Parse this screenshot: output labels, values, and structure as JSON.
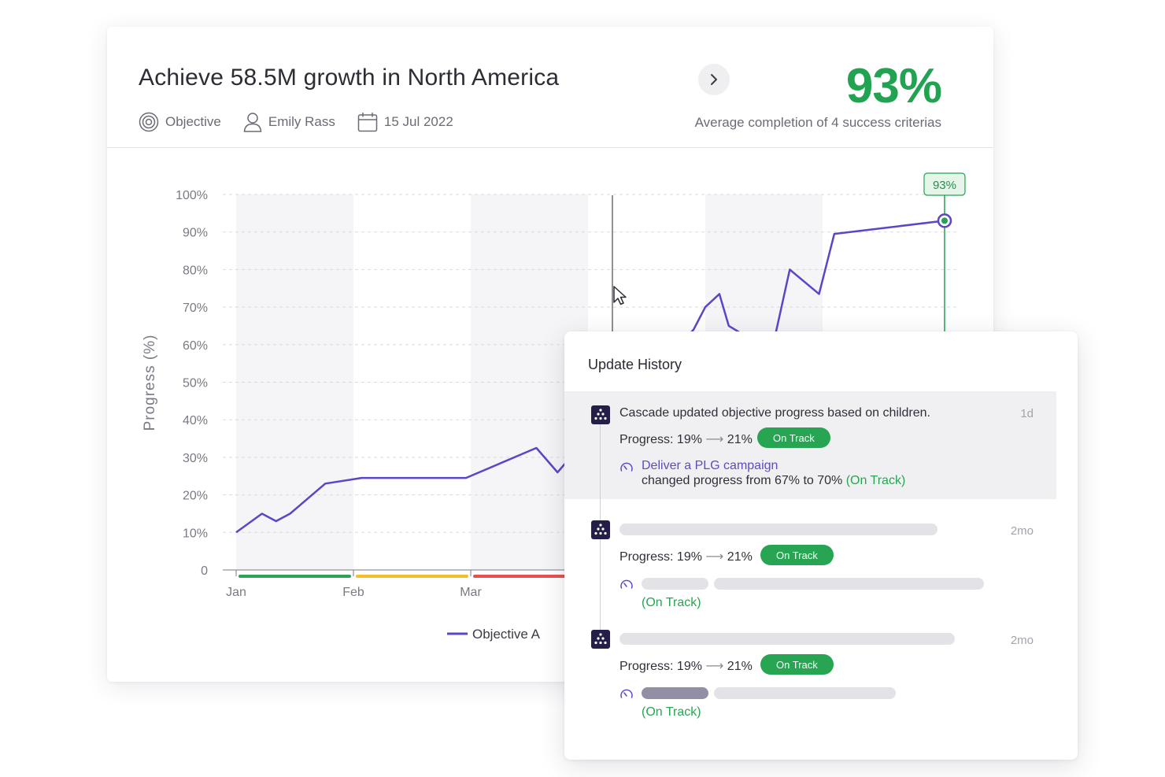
{
  "objective": {
    "title": "Achieve 58.5M growth in North America",
    "type_label": "Objective",
    "owner": "Emily Rass",
    "date": "15 Jul 2022",
    "completion_value": "93%",
    "completion_caption": "Average completion of 4 success criterias"
  },
  "chart_data": {
    "type": "line",
    "title": "",
    "ylabel": "Progress (%)",
    "xlabel": "",
    "ylim": [
      0,
      100
    ],
    "yticks": [
      "0",
      "10%",
      "20%",
      "30%",
      "40%",
      "50%",
      "60%",
      "70%",
      "80%",
      "90%",
      "100%"
    ],
    "xticks": [
      "Jan",
      "Feb",
      "Mar"
    ],
    "series": [
      {
        "name": "Objective A",
        "color": "#5a46c6",
        "points": [
          {
            "x": 0.0,
            "y": 10
          },
          {
            "x": 0.22,
            "y": 15
          },
          {
            "x": 0.34,
            "y": 13
          },
          {
            "x": 0.46,
            "y": 15
          },
          {
            "x": 0.76,
            "y": 23
          },
          {
            "x": 1.07,
            "y": 24.5
          },
          {
            "x": 1.96,
            "y": 24.5
          },
          {
            "x": 2.56,
            "y": 32.5
          },
          {
            "x": 2.74,
            "y": 26
          },
          {
            "x": 2.85,
            "y": 30
          },
          {
            "x": 3.9,
            "y": 64
          },
          {
            "x": 4.0,
            "y": 70
          },
          {
            "x": 4.12,
            "y": 73.5
          },
          {
            "x": 4.2,
            "y": 65
          },
          {
            "x": 4.52,
            "y": 59
          },
          {
            "x": 4.6,
            "y": 63
          },
          {
            "x": 4.72,
            "y": 80
          },
          {
            "x": 4.97,
            "y": 73.5
          },
          {
            "x": 5.1,
            "y": 89.5
          },
          {
            "x": 6.04,
            "y": 93
          }
        ]
      }
    ],
    "current_value_label": "93%",
    "status_bands": [
      "#2aa556",
      "#f2bf2a",
      "#ea4f4f"
    ],
    "legend_position": "bottom-center"
  },
  "history": {
    "title": "Update History",
    "entries": [
      {
        "actor": "Cascade",
        "action": " updated objective progress based on children.",
        "time": "1d",
        "progress_label": "Progress:",
        "progress_from": "19%",
        "progress_to": "21%",
        "status": "On Track",
        "child_name": "Deliver a PLG campaign",
        "child_change": "changed progress from 67% to 70%",
        "child_status": "(On Track)"
      },
      {
        "time": "2mo",
        "progress_label": "Progress:",
        "progress_from": "19%",
        "progress_to": "21%",
        "status": "On Track",
        "child_status": "(On Track)"
      },
      {
        "time": "2mo",
        "progress_label": "Progress:",
        "progress_from": "19%",
        "progress_to": "21%",
        "status": "On Track",
        "child_status": "(On Track)"
      }
    ]
  },
  "icons": {
    "objective": "target-icon",
    "owner": "user-icon",
    "date": "calendar-icon",
    "next": "chevron-right-icon",
    "avatar": "cascade-logo-icon",
    "key_result": "gauge-icon",
    "cursor": "mouse-pointer-icon"
  }
}
